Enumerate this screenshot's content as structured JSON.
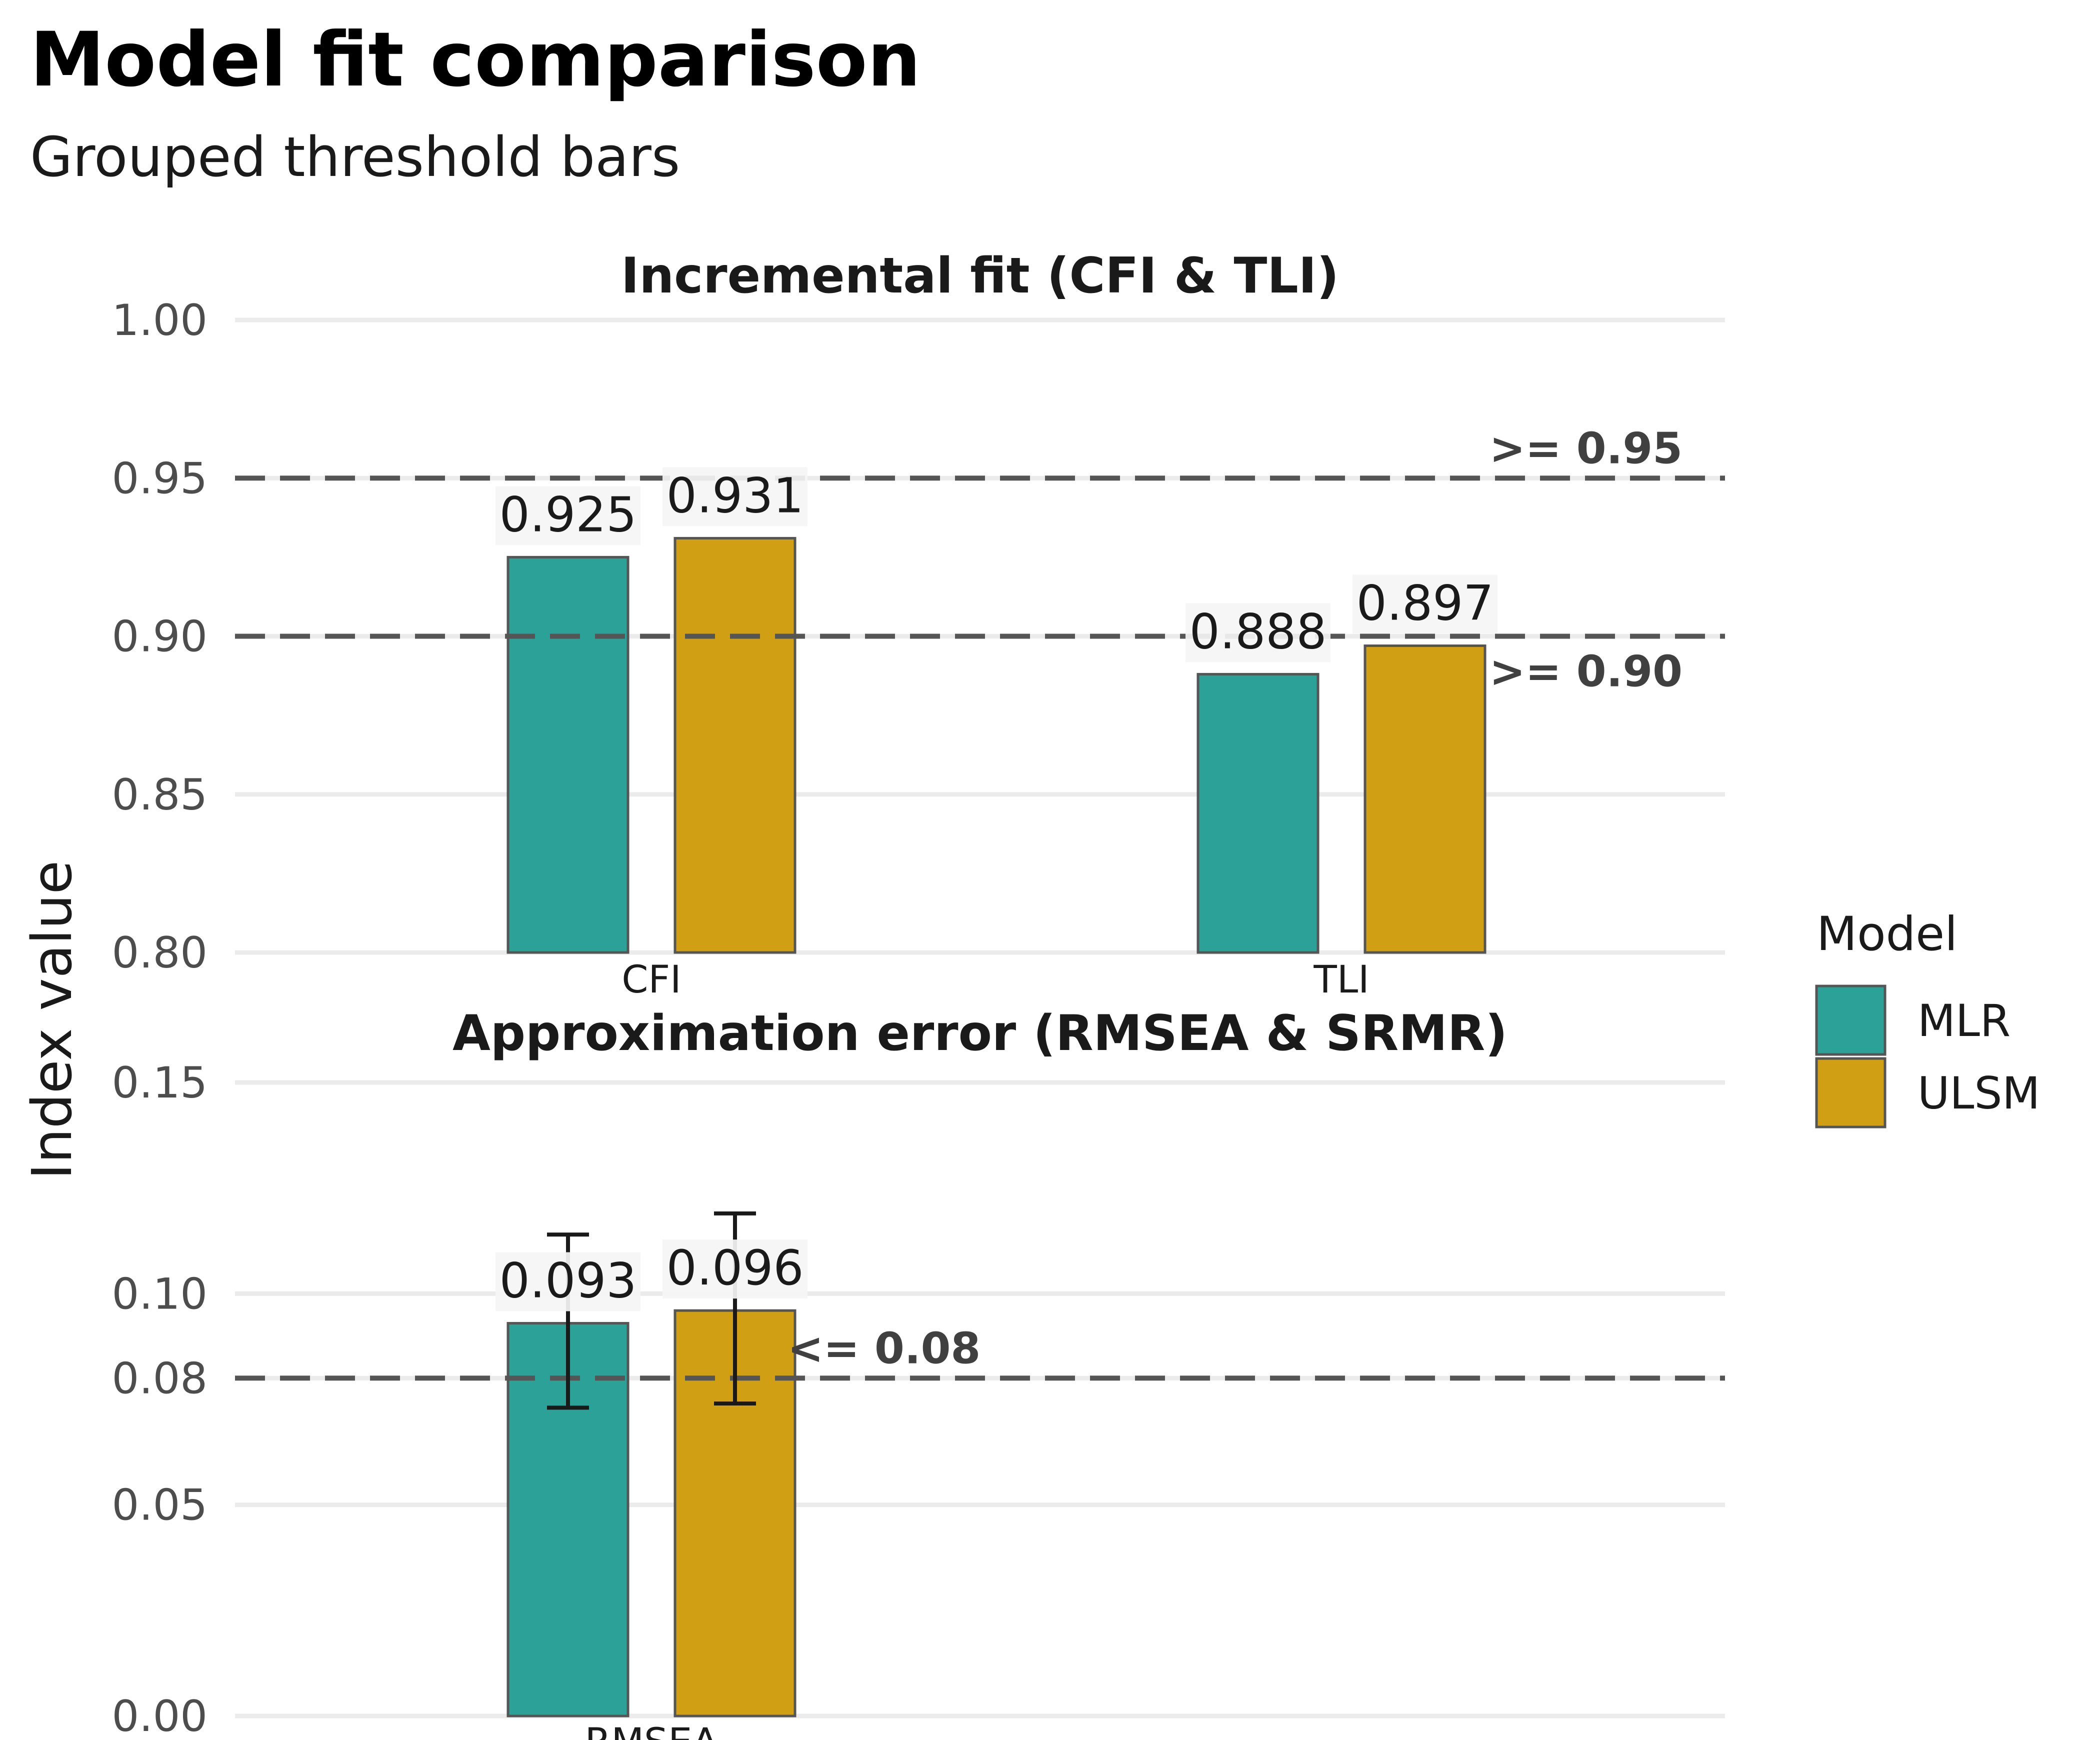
{
  "title": "Model fit comparison",
  "subtitle": "Grouped threshold bars",
  "chart_data": {
    "type": "bar",
    "ylabel": "Index value",
    "legend": {
      "title": "Model",
      "position": "right",
      "entries": [
        "MLR",
        "ULSM"
      ]
    },
    "colors": {
      "MLR": "#2ca197",
      "ULSM": "#d09f14",
      "bar_outline": "#555555",
      "threshold_line": "#555555",
      "grid": "#ebebeb"
    },
    "panels": [
      {
        "title": "Incremental fit (CFI & TLI)",
        "categories": [
          "CFI",
          "TLI"
        ],
        "ylim": [
          0.8,
          1.0
        ],
        "yticks": [
          0.8,
          0.85,
          0.9,
          0.95,
          1.0
        ],
        "ytick_labels": [
          "0.80",
          "0.85",
          "0.90",
          "0.95",
          "1.00"
        ],
        "series": [
          {
            "name": "MLR",
            "values": [
              0.925,
              0.888
            ],
            "labels": [
              "0.925",
              "0.888"
            ]
          },
          {
            "name": "ULSM",
            "values": [
              0.931,
              0.897
            ],
            "labels": [
              "0.931",
              "0.897"
            ]
          }
        ],
        "thresholds": [
          {
            "value": 0.95,
            "label": ">= 0.95"
          },
          {
            "value": 0.9,
            "label": ">= 0.90"
          }
        ]
      },
      {
        "title": "Approximation error (RMSEA & SRMR)",
        "categories": [
          "RMSEA"
        ],
        "ylim": [
          0.0,
          0.15
        ],
        "yticks": [
          0.0,
          0.05,
          0.08,
          0.1,
          0.15
        ],
        "ytick_labels": [
          "0.00",
          "0.05",
          "0.08",
          "0.10",
          "0.15"
        ],
        "series": [
          {
            "name": "MLR",
            "values": [
              0.093
            ],
            "labels": [
              "0.093"
            ],
            "ci": [
              [
                0.073,
                0.114
              ]
            ]
          },
          {
            "name": "ULSM",
            "values": [
              0.096
            ],
            "labels": [
              "0.096"
            ],
            "ci": [
              [
                0.074,
                0.119
              ]
            ]
          }
        ],
        "thresholds": [
          {
            "value": 0.08,
            "label": "<= 0.08"
          }
        ]
      }
    ]
  }
}
